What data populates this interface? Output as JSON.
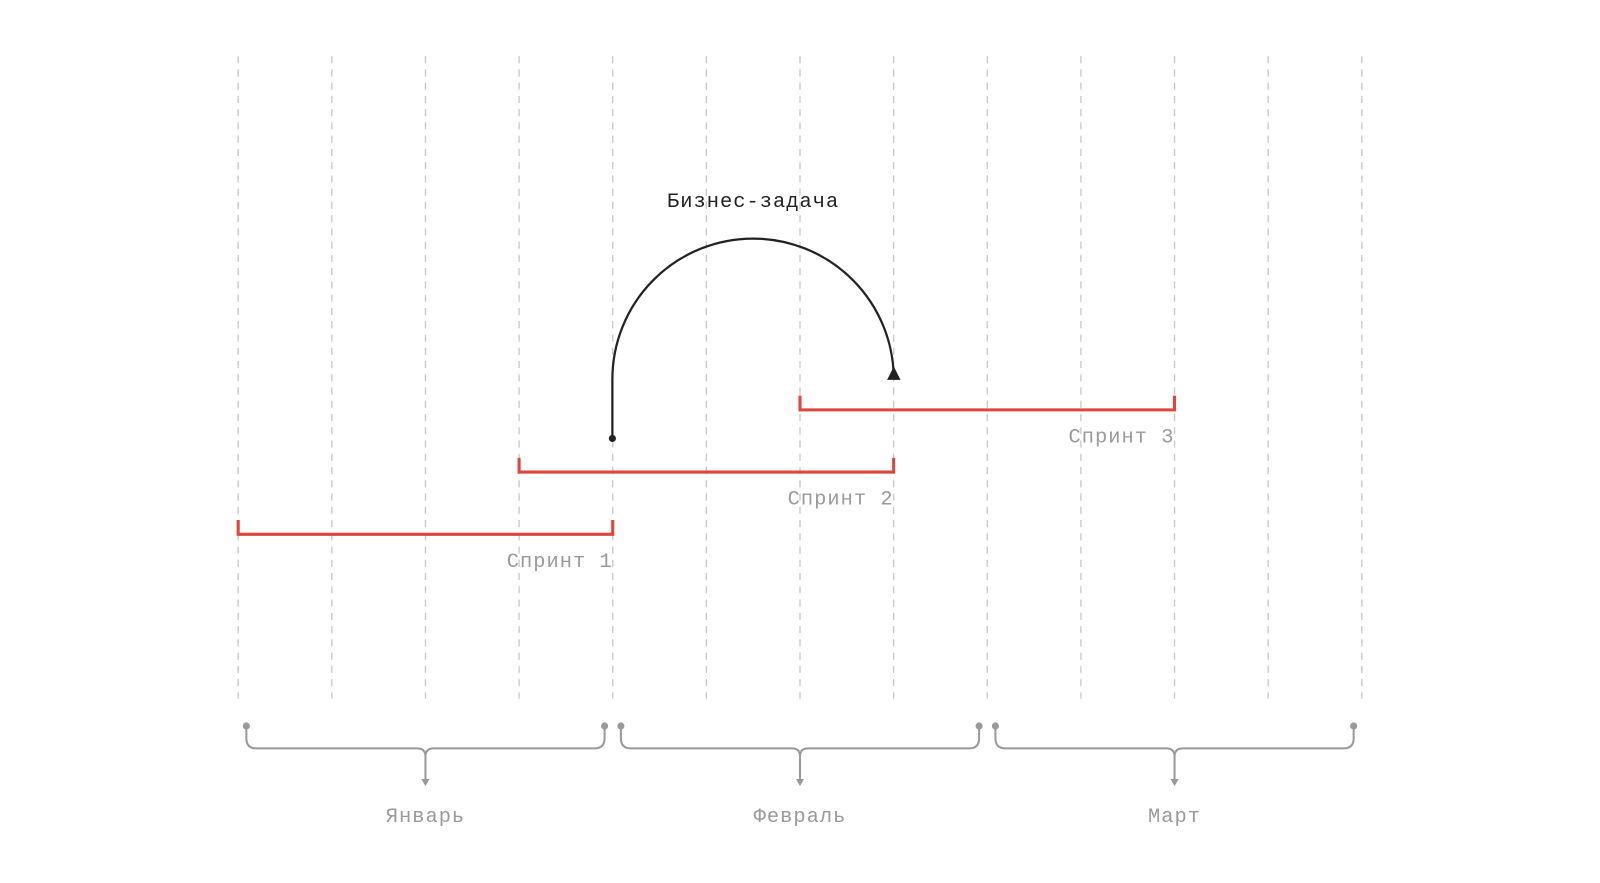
{
  "annotation": {
    "label": "Бизнес-задача"
  },
  "sprints": [
    {
      "label": "Спринт 1"
    },
    {
      "label": "Спринт 2"
    },
    {
      "label": "Спринт 3"
    }
  ],
  "months": [
    {
      "label": "Январь"
    },
    {
      "label": "Февраль"
    },
    {
      "label": "Март"
    }
  ]
}
